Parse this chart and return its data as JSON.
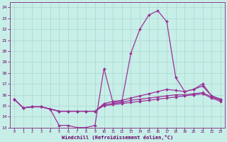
{
  "xlabel": "Windchill (Refroidissement éolien,°C)",
  "background_color": "#c8eee8",
  "grid_color": "#a8d8cc",
  "line_color": "#993399",
  "xlim": [
    -0.5,
    23.5
  ],
  "ylim": [
    13,
    24.5
  ],
  "yticks": [
    13,
    14,
    15,
    16,
    17,
    18,
    19,
    20,
    21,
    22,
    23,
    24
  ],
  "xticks": [
    0,
    1,
    2,
    3,
    4,
    5,
    6,
    7,
    8,
    9,
    10,
    11,
    12,
    13,
    14,
    15,
    16,
    17,
    18,
    19,
    20,
    21,
    22,
    23
  ],
  "series": [
    [
      15.6,
      14.8,
      14.9,
      14.9,
      14.7,
      13.2,
      13.2,
      13.0,
      13.0,
      13.2,
      18.4,
      15.3,
      15.4,
      19.8,
      22.0,
      23.3,
      23.7,
      22.7,
      17.6,
      16.3,
      16.5,
      17.0,
      15.9,
      15.6
    ],
    [
      15.6,
      14.8,
      14.9,
      14.9,
      14.7,
      14.5,
      14.5,
      14.5,
      14.5,
      14.5,
      15.2,
      15.4,
      15.5,
      15.7,
      15.9,
      16.1,
      16.3,
      16.5,
      16.4,
      16.3,
      16.5,
      16.8,
      15.9,
      15.6
    ],
    [
      15.6,
      14.8,
      14.9,
      14.9,
      14.7,
      14.5,
      14.5,
      14.5,
      14.5,
      14.5,
      15.1,
      15.2,
      15.3,
      15.5,
      15.6,
      15.7,
      15.8,
      15.9,
      16.0,
      16.0,
      16.1,
      16.2,
      15.8,
      15.5
    ],
    [
      15.6,
      14.8,
      14.9,
      14.9,
      14.7,
      14.5,
      14.5,
      14.5,
      14.5,
      14.5,
      15.0,
      15.1,
      15.2,
      15.3,
      15.4,
      15.5,
      15.6,
      15.7,
      15.8,
      15.9,
      16.0,
      16.1,
      15.7,
      15.4
    ]
  ]
}
